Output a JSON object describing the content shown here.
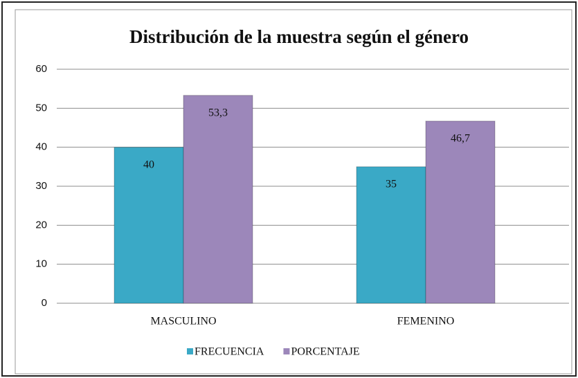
{
  "chart_data": {
    "type": "bar",
    "title": "Distribución de la muestra según el género",
    "categories": [
      "MASCULINO",
      "FEMENINO"
    ],
    "series": [
      {
        "name": "FRECUENCIA",
        "color": "#3aa9c6",
        "values": [
          40,
          35
        ]
      },
      {
        "name": "PORCENTAJE",
        "color": "#9c87ba",
        "values": [
          53.3,
          46.7
        ],
        "value_labels": [
          "53,3",
          "46,7"
        ]
      }
    ],
    "ylim": [
      0,
      60
    ],
    "yticks": [
      0,
      10,
      20,
      30,
      40,
      50,
      60
    ],
    "grid": true,
    "legend": "bottom"
  }
}
